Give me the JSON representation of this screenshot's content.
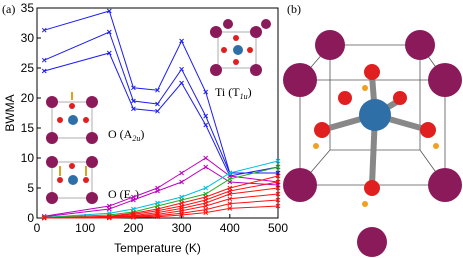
{
  "chart_data": {
    "type": "line",
    "panel_labels": [
      "(a)",
      "(b)"
    ],
    "x_label": "Temperature (K)",
    "y_label": "BWMA",
    "xlim": [
      0,
      500
    ],
    "xticks": [
      0,
      100,
      200,
      300,
      400,
      500
    ],
    "ylim": [
      0,
      35
    ],
    "yticks": [
      0,
      5,
      10,
      15,
      20,
      25,
      30,
      35
    ],
    "annotations": [
      {
        "main": "Ti (T",
        "sub": "1u",
        "end": ")"
      },
      {
        "main": "O (A",
        "sub": "2u",
        "end": ")"
      },
      {
        "main": "O (E",
        "sub": "u",
        "end": ")"
      }
    ],
    "x": [
      15,
      150,
      200,
      250,
      300,
      350,
      400,
      500
    ],
    "series": [
      {
        "color": "#1c1cf0",
        "values": [
          31.3,
          34.5,
          21.7,
          21.3,
          29.5,
          21,
          7.5,
          7.5
        ]
      },
      {
        "color": "#1c1cf0",
        "values": [
          26.3,
          31,
          19.5,
          19,
          24.8,
          17,
          7.5,
          7.5
        ]
      },
      {
        "color": "#1c1cf0",
        "values": [
          24.5,
          27.5,
          18.2,
          17.8,
          22.5,
          15.5,
          7,
          8.5
        ]
      },
      {
        "color": "#c000c0",
        "values": [
          0.3,
          2,
          3.5,
          5,
          7.5,
          10,
          7,
          6
        ]
      },
      {
        "color": "#c000c0",
        "values": [
          0.2,
          1.5,
          3,
          4.5,
          6,
          8.5,
          6,
          5.5
        ]
      },
      {
        "color": "#00c0e0",
        "values": [
          0.1,
          0.8,
          1.5,
          2.5,
          3.5,
          5,
          7.5,
          9.5
        ]
      },
      {
        "color": "#20b020",
        "values": [
          0.1,
          0.5,
          1,
          2,
          3,
          4,
          6.5,
          8.5
        ]
      },
      {
        "color": "#ff1010",
        "values": [
          0,
          0.3,
          0.8,
          1.5,
          2.5,
          3.5,
          5,
          7
        ]
      },
      {
        "color": "#ff1010",
        "values": [
          0,
          0.2,
          0.6,
          1.2,
          2,
          3,
          4.5,
          6
        ]
      },
      {
        "color": "#ff1010",
        "values": [
          0,
          0.1,
          0.4,
          0.9,
          1.6,
          2.5,
          4,
          5
        ]
      },
      {
        "color": "#ff1010",
        "values": [
          0,
          0.1,
          0.3,
          0.6,
          1.2,
          2,
          3.2,
          4
        ]
      },
      {
        "color": "#ff1010",
        "values": [
          0,
          0,
          0.2,
          0.4,
          0.8,
          1.4,
          2.4,
          3
        ]
      },
      {
        "color": "#ff1010",
        "values": [
          0,
          0,
          0.1,
          0.2,
          0.5,
          0.9,
          1.6,
          2
        ]
      }
    ]
  }
}
